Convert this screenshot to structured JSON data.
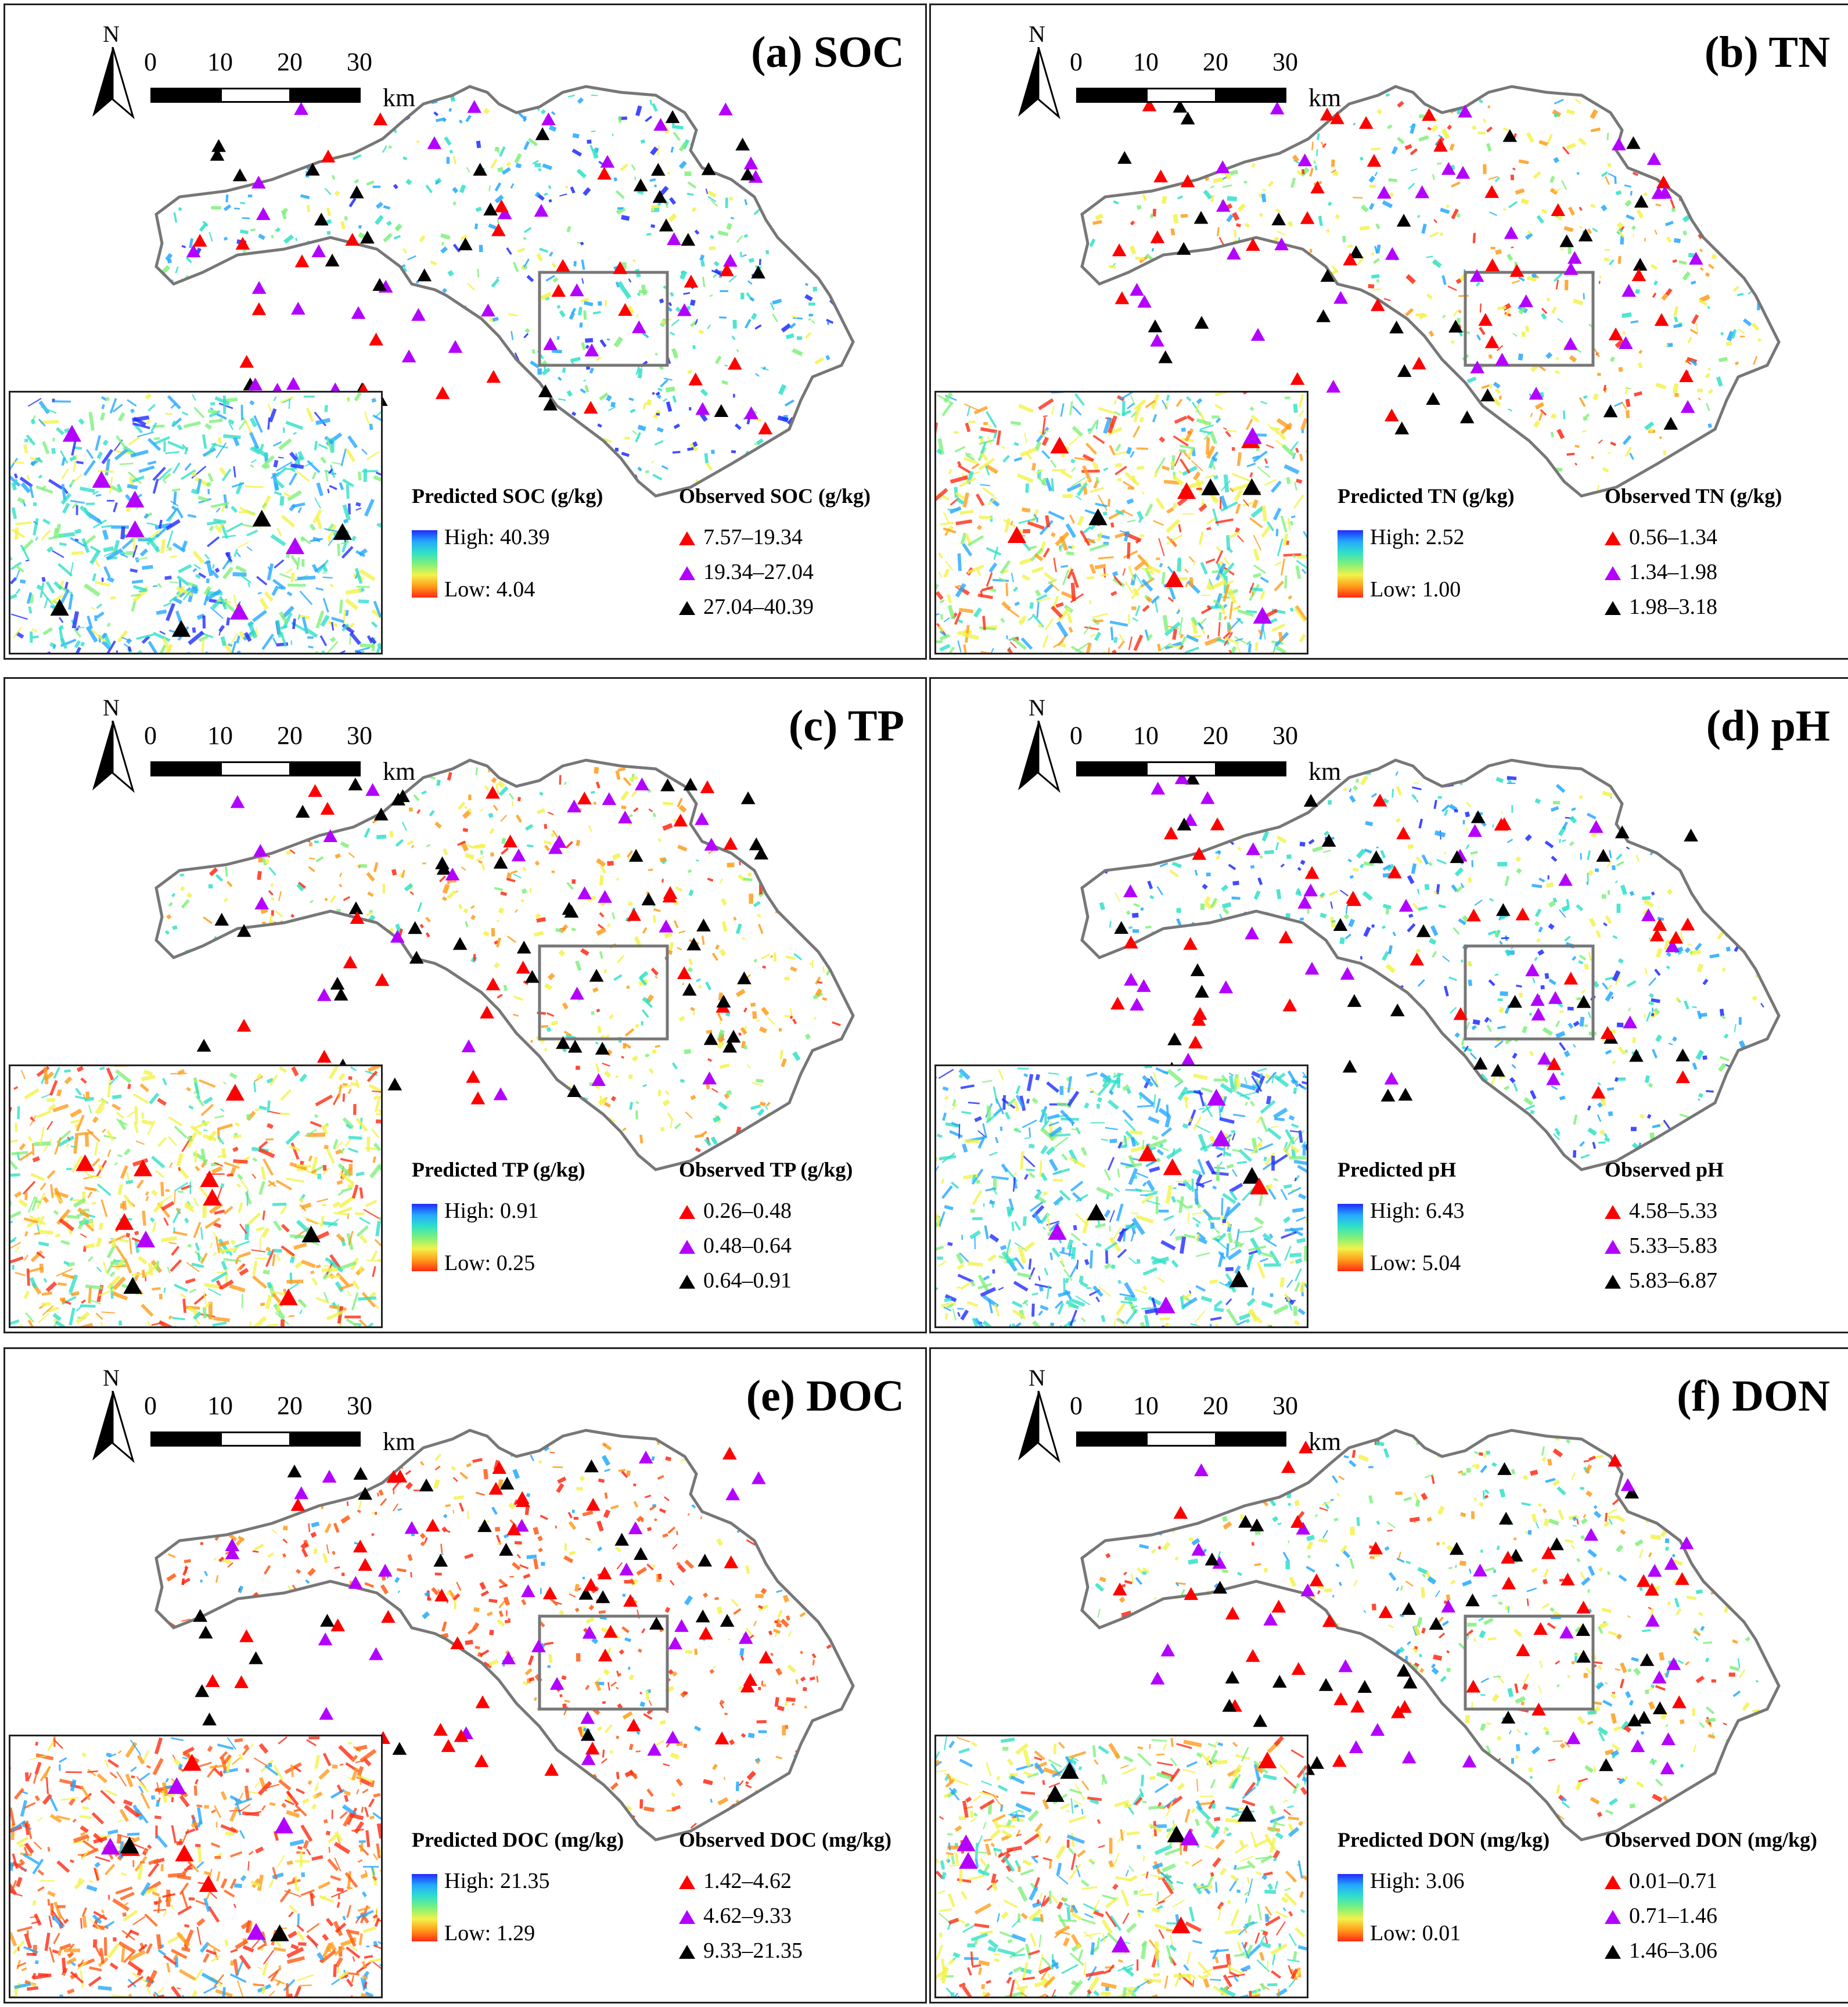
{
  "colors": {
    "low_class": "#ff0000",
    "mid_class": "#b300ff",
    "high_class": "#000000",
    "ramp_high": "#1f2cff",
    "ramp_low": "#ff2a14",
    "boundary": "#777777",
    "study_box": "#777777"
  },
  "common": {
    "north_label": "N",
    "scale_ticks": [
      "0",
      "10",
      "20",
      "30"
    ],
    "scale_unit": "km"
  },
  "panels": [
    {
      "title": "(a) SOC",
      "pred_title": "Predicted SOC  (g/kg)",
      "pred_high": "High: 40.39",
      "pred_low": "Low: 4.04",
      "obs_title": "Observed SOC (g/kg)",
      "obs_classes": [
        "7.57–19.34",
        "19.34–27.04",
        "27.04–40.39"
      ],
      "dominant": "cool"
    },
    {
      "title": "(b) TN",
      "pred_title": "Predicted TN (g/kg)",
      "pred_high": "High: 2.52",
      "pred_low": "Low: 1.00",
      "obs_title": "Observed TN (g/kg)",
      "obs_classes": [
        "0.56–1.34",
        "1.34–1.98",
        "1.98–3.18"
      ],
      "dominant": "mixed"
    },
    {
      "title": "(c) TP",
      "pred_title": "Predicted TP (g/kg)",
      "pred_high": "High: 0.91",
      "pred_low": "Low: 0.25",
      "obs_title": "Observed TP (g/kg)",
      "obs_classes": [
        "0.26–0.48",
        "0.48–0.64",
        "0.64–0.91"
      ],
      "dominant": "warm"
    },
    {
      "title": "(d) pH",
      "pred_title": "Predicted pH",
      "pred_high": "High: 6.43",
      "pred_low": "Low: 5.04",
      "obs_title": "Observed pH",
      "obs_classes": [
        "4.58–5.33",
        "5.33–5.83",
        "5.83–6.87"
      ],
      "dominant": "cool"
    },
    {
      "title": "(e) DOC",
      "pred_title": "Predicted DOC (mg/kg)",
      "pred_high": "High: 21.35",
      "pred_low": "Low: 1.29",
      "obs_title": "Observed DOC (mg/kg)",
      "obs_classes": [
        "1.42–4.62",
        "4.62–9.33",
        "9.33–21.35"
      ],
      "dominant": "hot"
    },
    {
      "title": "(f) DON",
      "pred_title": "Predicted DON (mg/kg)",
      "pred_high": "High: 3.06",
      "pred_low": "Low: 0.01",
      "obs_title": "Observed DON (mg/kg)",
      "obs_classes": [
        "0.01–0.71",
        "0.71–1.46",
        "1.46–3.06"
      ],
      "dominant": "mixed"
    }
  ]
}
